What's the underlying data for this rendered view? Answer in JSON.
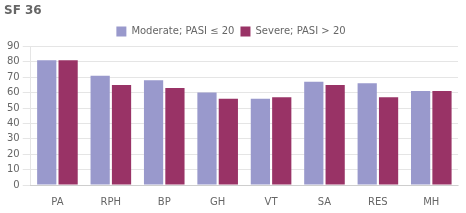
{
  "chart_data": {
    "type": "bar",
    "title": "SF 36",
    "categories": [
      "PA",
      "RPH",
      "BP",
      "GH",
      "VT",
      "SA",
      "RES",
      "MH"
    ],
    "series": [
      {
        "name": "Moderate; PASI ≤ 20",
        "color": "#9999cc",
        "values": [
          81,
          71,
          68,
          60,
          56,
          67,
          66,
          61
        ]
      },
      {
        "name": "Severe; PASI > 20",
        "color": "#993366",
        "values": [
          81,
          65,
          63,
          56,
          57,
          65,
          57,
          61
        ]
      }
    ],
    "ylim": [
      0,
      90
    ],
    "yticks": [
      0,
      10,
      20,
      30,
      40,
      50,
      60,
      70,
      80,
      90
    ],
    "grid": true,
    "legend": "top"
  }
}
